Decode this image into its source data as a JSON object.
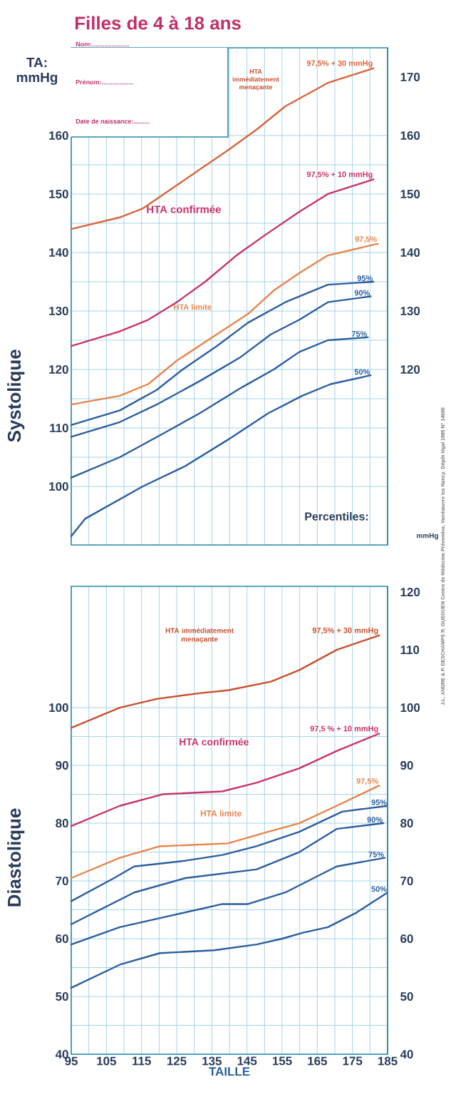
{
  "chart_data": [
    {
      "type": "line",
      "title": "Filles de 4 à 18 ans",
      "ylabel": "Systolique",
      "annotations": [
        "TA: mmHg",
        "Nom:.....................",
        "Prénom:..................",
        "Date de naissance:.........",
        "HTA immédiatement menaçante",
        "HTA confirmée",
        "HTA limite",
        "Percentiles:"
      ],
      "xlim": [
        95,
        185
      ],
      "xticks": [
        95,
        105,
        115,
        125,
        135,
        145,
        155,
        165,
        175,
        185
      ],
      "ylim": [
        90,
        175
      ],
      "yticks": [
        100,
        110,
        120,
        130,
        140,
        150,
        160
      ],
      "y2lim": [
        90,
        175
      ],
      "y2ticks": [
        120,
        130,
        140,
        150,
        160,
        170
      ],
      "tick_labels": "y",
      "grid": true,
      "series": [
        {
          "name": "97,5% + 30 mmHg",
          "color": "#d8643c",
          "x": [
            95,
            108.8,
            115.3,
            125,
            139.6,
            147.7,
            155.9,
            168,
            181
          ],
          "values": [
            144,
            146,
            147.5,
            151.5,
            157.5,
            161,
            165,
            169,
            171.5
          ]
        },
        {
          "name": "97,5% + 10 mmHg",
          "color": "#c8336a",
          "x": [
            95,
            108.8,
            116.9,
            125,
            133.1,
            142,
            150.2,
            160,
            168,
            181
          ],
          "values": [
            124,
            126.5,
            128.5,
            131.5,
            135,
            139.5,
            143,
            147,
            150,
            152.5
          ]
        },
        {
          "name": "97,5%",
          "color": "#e8844a",
          "x": [
            95,
            108.8,
            116.9,
            125,
            136.4,
            145.3,
            152.6,
            159.9,
            168,
            182.2
          ],
          "values": [
            114,
            115.5,
            117.5,
            121.5,
            126,
            129.5,
            133.5,
            136.5,
            139.5,
            141.5
          ]
        },
        {
          "name": "95%",
          "color": "#2b5d9e",
          "x": [
            95,
            108.8,
            119.3,
            126.7,
            136.4,
            145.3,
            155.9,
            168,
            181
          ],
          "values": [
            110.5,
            113,
            116.5,
            120,
            124,
            128,
            131.5,
            134.5,
            135
          ]
        },
        {
          "name": "90%",
          "color": "#2b5d9e",
          "x": [
            95,
            108.8,
            119.3,
            131.5,
            142.9,
            151.8,
            159.9,
            168,
            180.2
          ],
          "values": [
            108.5,
            111,
            114,
            118,
            122,
            126,
            128.5,
            131.5,
            132.5
          ]
        },
        {
          "name": "75%",
          "color": "#2b5d9e",
          "x": [
            95,
            108.8,
            121,
            131.5,
            143.7,
            152.6,
            159.9,
            168,
            179.4
          ],
          "values": [
            101.5,
            105,
            109,
            112.5,
            117,
            120,
            123,
            125,
            125.5
          ]
        },
        {
          "name": "50%",
          "color": "#2b5d9e",
          "x": [
            95,
            99,
            115.3,
            127.5,
            139.6,
            151,
            160.7,
            168.8,
            180.2
          ],
          "values": [
            91.5,
            94.5,
            100,
            103.5,
            108,
            112.5,
            115.5,
            117.5,
            119
          ]
        }
      ]
    },
    {
      "type": "line",
      "xlabel": "TAILLE",
      "ylabel": "Diastolique",
      "annotations": [
        "mmHg",
        "HTA immédiatement menaçante",
        "HTA confirmée",
        "HTA limite",
        "J.L. ANDRE & P. DESCHAMPS R. GUEGUEN Centre de Médecine Préventive, Vandœuvre les Nancy. Dépôt légal 1985 N° 14600"
      ],
      "xlim": [
        95,
        185
      ],
      "xticks": [
        95,
        105,
        115,
        125,
        135,
        145,
        155,
        165,
        175,
        185
      ],
      "ylim": [
        40,
        121
      ],
      "yticks": [
        40,
        50,
        60,
        70,
        80,
        90,
        100
      ],
      "y2lim": [
        40,
        121
      ],
      "y2ticks": [
        40,
        50,
        60,
        70,
        80,
        90,
        100,
        110,
        120
      ],
      "grid": true,
      "series": [
        {
          "name": "97,5% + 30 mmHg",
          "color": "#c8502e",
          "x": [
            95,
            108.8,
            119.3,
            131.5,
            139.6,
            151.8,
            159.9,
            170.5,
            182.6
          ],
          "values": [
            96.5,
            100,
            101.5,
            102.5,
            103,
            104.5,
            106.5,
            110,
            112.5
          ]
        },
        {
          "name": "97,5 % + 10 mmHg",
          "color": "#c8336a",
          "x": [
            95,
            108.8,
            121,
            138,
            147.7,
            159.9,
            170.5,
            182.6
          ],
          "values": [
            79.5,
            83,
            85,
            85.5,
            87,
            89.5,
            92.5,
            95.5
          ]
        },
        {
          "name": "97,5%",
          "color": "#e8844a",
          "x": [
            95,
            108.8,
            120.2,
            139.6,
            151,
            159.9,
            170.5,
            182.6
          ],
          "values": [
            70.5,
            74,
            76,
            76.5,
            78.5,
            80,
            83,
            86.5
          ]
        },
        {
          "name": "95%",
          "color": "#2b5d9e",
          "x": [
            95,
            107.2,
            112.9,
            127.5,
            138,
            147.7,
            159.9,
            172.1,
            185
          ],
          "values": [
            66.5,
            70.5,
            72.5,
            73.5,
            74.5,
            76,
            78.5,
            82,
            83
          ]
        },
        {
          "name": "90%",
          "color": "#2b5d9e",
          "x": [
            95,
            112.9,
            127.5,
            147.7,
            159.9,
            170.5,
            183.8
          ],
          "values": [
            62.5,
            68,
            70.5,
            72,
            75,
            79,
            80
          ]
        },
        {
          "name": "75%",
          "color": "#2b5d9e",
          "x": [
            95,
            108.8,
            123.4,
            138,
            145.3,
            155.9,
            170.5,
            184.2
          ],
          "values": [
            59,
            62,
            64,
            66,
            66,
            68,
            72.5,
            74
          ]
        },
        {
          "name": "50%",
          "color": "#2b5d9e",
          "x": [
            95,
            108.8,
            120.2,
            135.6,
            147.7,
            155,
            160.7,
            168,
            176.1,
            185
          ],
          "values": [
            51.5,
            55.5,
            57.5,
            58,
            59,
            60,
            61,
            62,
            64.5,
            68
          ]
        }
      ]
    }
  ]
}
